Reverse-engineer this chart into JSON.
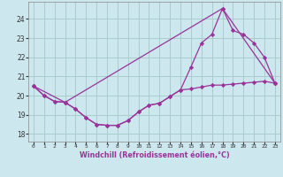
{
  "xlabel": "Windchill (Refroidissement éolien,°C)",
  "bg_color": "#cce8ee",
  "grid_color": "#aacccc",
  "line_color": "#993399",
  "x_ticks": [
    0,
    1,
    2,
    3,
    4,
    5,
    6,
    7,
    8,
    9,
    10,
    11,
    12,
    13,
    14,
    15,
    16,
    17,
    18,
    19,
    20,
    21,
    22,
    23
  ],
  "ylim": [
    17.6,
    24.9
  ],
  "yticks": [
    18,
    19,
    20,
    21,
    22,
    23,
    24
  ],
  "line1_x": [
    0,
    1,
    2,
    3,
    4,
    5,
    6,
    7,
    8,
    9,
    10,
    11,
    12,
    13,
    14,
    15,
    16,
    17,
    18,
    19,
    20,
    21,
    22,
    23
  ],
  "line1_y": [
    20.5,
    20.0,
    19.7,
    19.65,
    19.3,
    18.85,
    18.5,
    18.45,
    18.45,
    18.7,
    19.15,
    19.5,
    19.6,
    19.95,
    20.3,
    20.35,
    20.45,
    20.55,
    20.55,
    20.6,
    20.65,
    20.7,
    20.75,
    20.65
  ],
  "line2_x": [
    0,
    1,
    2,
    3,
    4,
    5,
    6,
    7,
    8,
    9,
    10,
    11,
    12,
    13,
    14,
    15,
    16,
    17,
    18,
    19,
    20,
    21,
    22,
    23
  ],
  "line2_y": [
    20.5,
    20.0,
    19.7,
    19.65,
    19.3,
    18.85,
    18.5,
    18.45,
    18.45,
    18.7,
    19.15,
    19.5,
    19.6,
    19.95,
    20.3,
    21.5,
    22.75,
    23.2,
    24.55,
    23.4,
    23.2,
    22.75,
    22.0,
    20.65
  ],
  "line3_x": [
    0,
    3,
    18,
    23
  ],
  "line3_y": [
    20.5,
    19.65,
    24.55,
    20.65
  ]
}
